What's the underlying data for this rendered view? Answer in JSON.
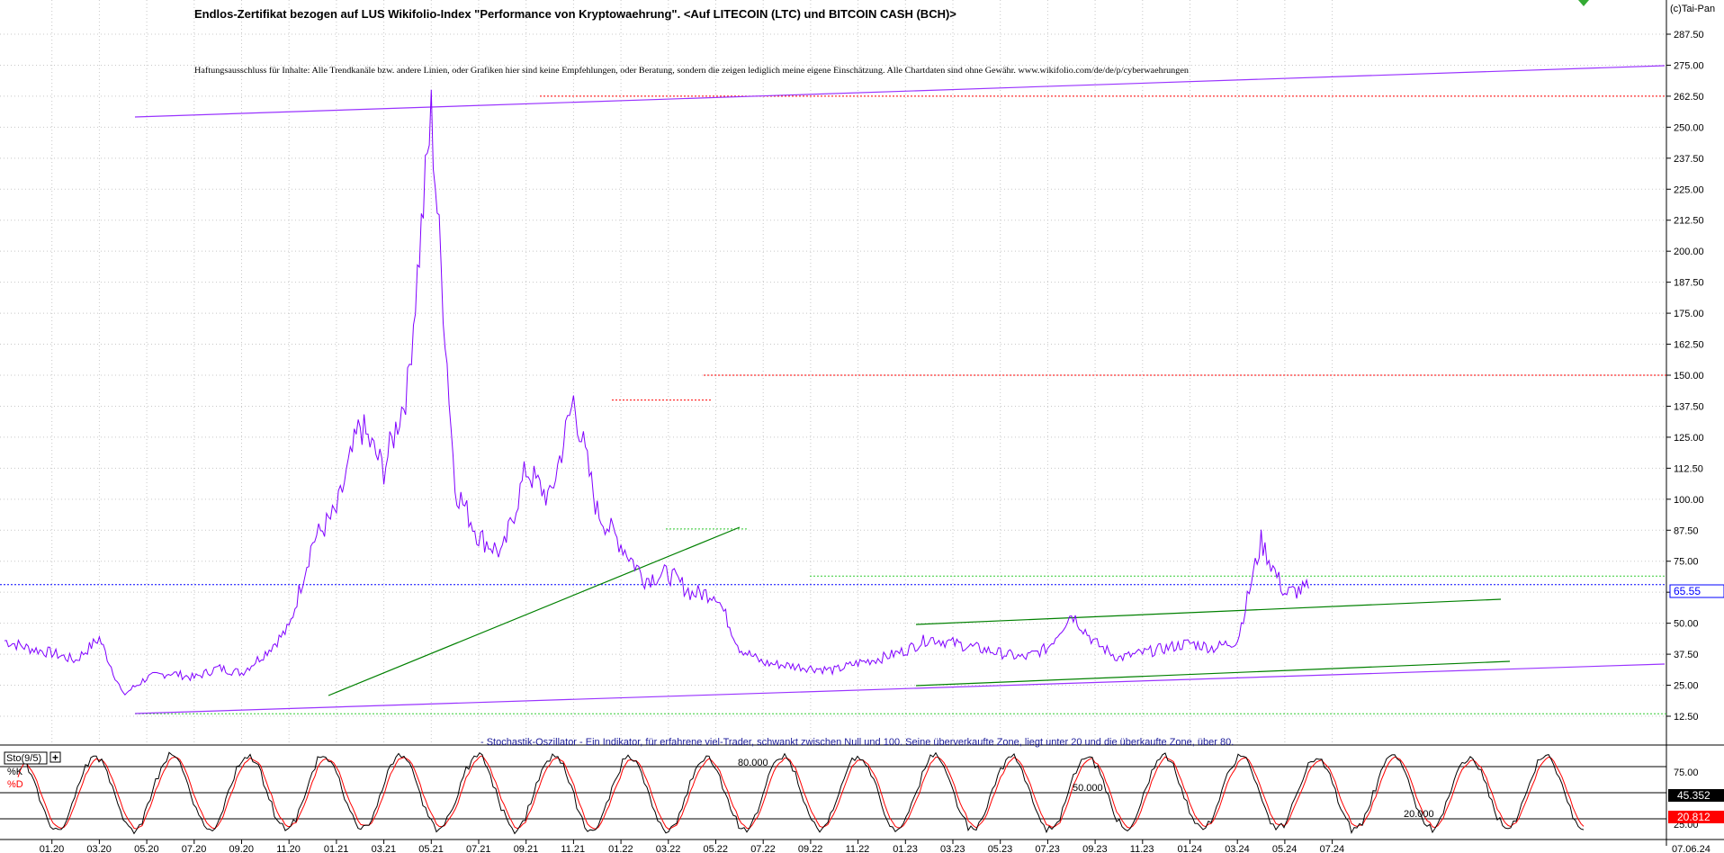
{
  "header": {
    "title": "Endlos-Zertifikat bezogen auf LUS Wikifolio-Index \"Performance von Kryptowaehrung\". <Auf LITECOIN (LTC) und BITCOIN CASH (BCH)>",
    "disclaimer": "Haftungsausschluss für Inhalte: Alle Trendkanäle bzw. andere Linien, oder Grafiken hier sind keine Empfehlungen, oder Beratung, sondern die zeigen lediglich meine eigene Einschätzung. Alle Chartdaten sind ohne Gewähr. www.wikifolio.com/de/de/p/cyberwaehrungen",
    "copyright": "(c)Tai-Pan"
  },
  "colors": {
    "price_line": "#8000ff",
    "trend_purple": "#9933ff",
    "trend_green": "#008000",
    "resistance_red": "#ff0000",
    "support_green": "#33cc33",
    "current_price_blue": "#0000ff",
    "stoch_k": "#000000",
    "stoch_d": "#ff0000",
    "note_text": "#1a1a99"
  },
  "indicator": {
    "note": "- Stochastik-Oszillator - Ein Indikator, für erfahrene viel-Trader, schwankt zwischen Null und 100. Seine überverkaufte Zone, liegt unter 20 und die überkaufte Zone, über 80.",
    "name": "Sto(9/5)",
    "k_label": "%K",
    "d_label": "%D",
    "level_80": "80.000",
    "level_50": "50.000",
    "level_20": "20.000"
  },
  "chart_data": [
    {
      "type": "line",
      "series": [
        {
          "x": [
            "11.19",
            "12.19",
            "01.20",
            "02.20",
            "03.20",
            "04.20",
            "05.20",
            "06.20",
            "07.20",
            "08.20",
            "09.20",
            "10.20",
            "11.20",
            "12.20",
            "01.21",
            "02.21",
            "03.21",
            "04.21",
            "05.21",
            "06.21",
            "07.21",
            "08.21",
            "09.21",
            "10.21",
            "11.21",
            "12.21",
            "01.22",
            "02.22",
            "03.22",
            "04.22",
            "05.22",
            "06.22",
            "07.22",
            "08.22",
            "09.22",
            "10.22",
            "11.22",
            "12.22",
            "01.23",
            "02.23",
            "03.23",
            "04.23",
            "05.23",
            "06.23",
            "07.23",
            "08.23",
            "09.23",
            "10.23",
            "11.23",
            "12.23",
            "01.24",
            "02.24",
            "03.24",
            "04.24",
            "05.24",
            "06.24"
          ],
          "y": [
            43,
            40,
            38,
            35,
            44,
            21,
            28,
            30,
            28,
            32,
            30,
            38,
            48,
            83,
            95,
            130,
            112,
            145,
            255,
            105,
            85,
            78,
            112,
            100,
            140,
            95,
            82,
            68,
            70,
            62,
            62,
            40,
            34,
            33,
            32,
            31,
            34,
            36,
            39,
            44,
            42,
            40,
            38,
            36,
            40,
            54,
            42,
            36,
            38,
            40,
            42,
            40,
            43,
            83,
            62,
            64
          ]
        }
      ],
      "y_ticks": [
        12.5,
        25.0,
        37.5,
        50.0,
        62.5,
        75.0,
        87.5,
        100.0,
        112.5,
        125.0,
        137.5,
        150.0,
        162.5,
        175.0,
        187.5,
        200.0,
        212.5,
        225.0,
        237.5,
        250.0,
        262.5,
        275.0,
        287.5
      ],
      "y_tick_labels": [
        "12.50",
        "25.00",
        "37.50",
        "50.00",
        "62.50",
        "75.00",
        "87.50",
        "100.00",
        "112.50",
        "125.00",
        "137.50",
        "150.00",
        "162.50",
        "175.00",
        "187.50",
        "200.00",
        "212.50",
        "225.00",
        "237.50",
        "250.00",
        "262.50",
        "275.00",
        "287.50"
      ],
      "ylim": [
        7,
        299
      ],
      "x_tick_labels": [
        "01.20",
        "03.20",
        "05.20",
        "07.20",
        "09.20",
        "11.20",
        "01.21",
        "03.21",
        "05.21",
        "07.21",
        "09.21",
        "11.21",
        "01.22",
        "03.22",
        "05.22",
        "07.22",
        "09.22",
        "11.22",
        "01.23",
        "03.23",
        "05.23",
        "07.23",
        "09.23",
        "11.23",
        "01.24",
        "03.24",
        "05.24",
        "07.24"
      ],
      "last_date": "07.06.24",
      "current_value": 65.55,
      "current_label": "65.55",
      "resistance_levels": [
        262.5,
        150.0,
        140.0
      ],
      "support_levels": [
        88.0,
        69.0,
        13.5
      ],
      "grid": true,
      "annotations": "trendlines drawn in purple and green"
    },
    {
      "type": "line",
      "series": [
        {
          "name": "%K",
          "current": 45.352,
          "current_label": "45.352"
        },
        {
          "name": "%D",
          "current": 20.812,
          "current_label": "20.812"
        }
      ],
      "levels": [
        20,
        50,
        80
      ],
      "ylim": [
        0,
        100
      ],
      "y_tick_labels": [
        "25.00",
        "75.00"
      ]
    }
  ]
}
